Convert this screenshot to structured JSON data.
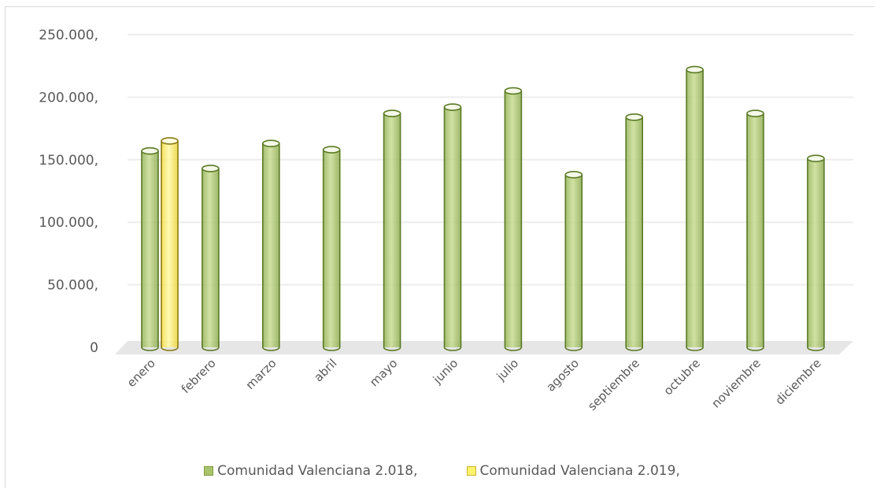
{
  "chart_data": {
    "type": "bar",
    "title": "",
    "xlabel": "",
    "ylabel": "",
    "categories": [
      "enero",
      "febrero",
      "marzo",
      "abril",
      "mayo",
      "junio",
      "julio",
      "agosto",
      "septiembre",
      "octubre",
      "noviembre",
      "diciembre"
    ],
    "series": [
      {
        "name": "Comunidad Valenciana 2.018,",
        "color": "#a9c46a",
        "values": [
          157000,
          143000,
          163000,
          158000,
          187000,
          192000,
          205000,
          138000,
          184000,
          222000,
          187000,
          151000
        ]
      },
      {
        "name": "Comunidad Valenciana 2.019,",
        "color": "#fff36b",
        "values": [
          165000,
          null,
          null,
          null,
          null,
          null,
          null,
          null,
          null,
          null,
          null,
          null
        ]
      }
    ],
    "ylim": [
      0,
      250000
    ],
    "yticks": [
      0,
      50000,
      100000,
      150000,
      200000,
      250000
    ],
    "ytick_labels": [
      "0",
      "50.000,",
      "100.000,",
      "150.000,",
      "200.000,",
      "250.000,"
    ],
    "grid": true,
    "legend_position": "bottom"
  }
}
